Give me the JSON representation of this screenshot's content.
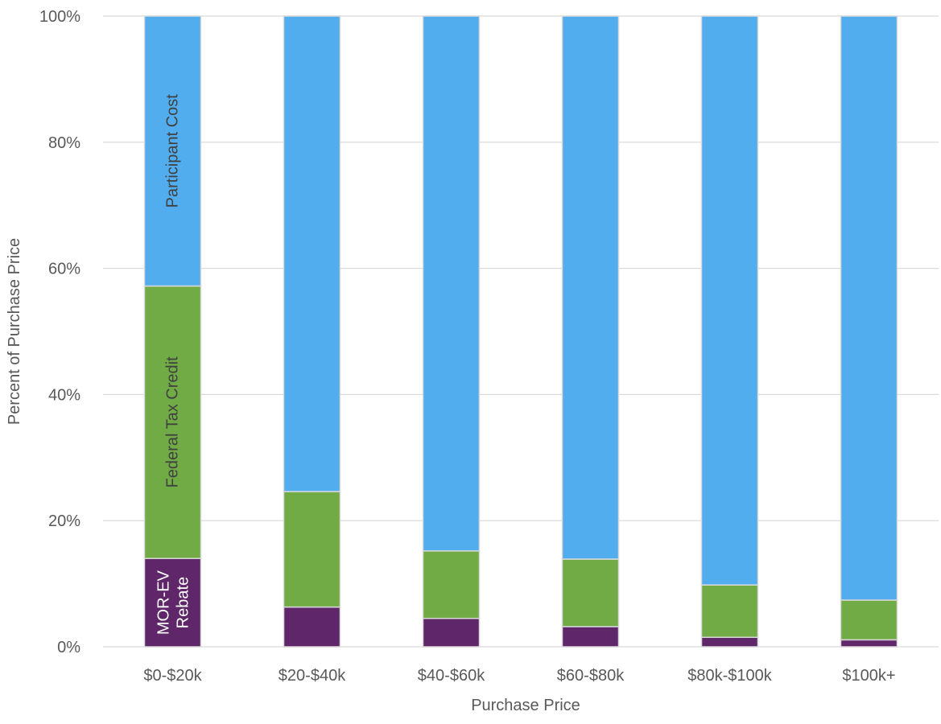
{
  "chart_data": {
    "type": "bar",
    "stacked": true,
    "xlabel": "Purchase Price",
    "ylabel": "Percent of Purchase Price",
    "ylim": [
      0,
      100
    ],
    "yticks": [
      "0%",
      "20%",
      "40%",
      "60%",
      "80%",
      "100%"
    ],
    "grid": true,
    "categories": [
      "$0-$20k",
      "$20-$40k",
      "$40-$60k",
      "$60-$80k",
      "$80k-$100k",
      "$100k+"
    ],
    "series": [
      {
        "name": "MOR-EV Rebate",
        "color": "#5f2669",
        "values": [
          14.0,
          6.3,
          4.5,
          3.2,
          1.5,
          1.1
        ]
      },
      {
        "name": "Federal Tax Credit",
        "color": "#70ab46",
        "values": [
          43.2,
          18.3,
          10.7,
          10.7,
          8.3,
          6.3
        ]
      },
      {
        "name": "Participant Cost",
        "color": "#52adee",
        "values": [
          42.8,
          75.4,
          84.8,
          86.1,
          90.2,
          92.6
        ]
      }
    ],
    "annotations": [
      {
        "text": "MOR-EV",
        "text2": "Rebate",
        "category": "$0-$20k",
        "series": "MOR-EV Rebate",
        "color": "#ffffff"
      },
      {
        "text": "Federal Tax Credit",
        "category": "$0-$20k",
        "series": "Federal Tax Credit",
        "color": "#404040"
      },
      {
        "text": "Participant Cost",
        "category": "$0-$20k",
        "series": "Participant Cost",
        "color": "#404040"
      }
    ]
  }
}
